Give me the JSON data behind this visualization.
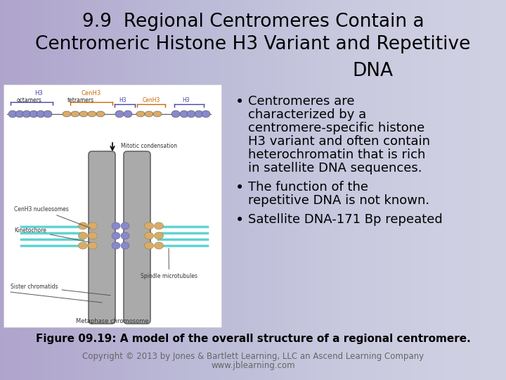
{
  "title_line1": "9.9  Regional Centromeres Contain a",
  "title_line2": "Centromeric Histone H3 Variant and Repetitive",
  "title_line3": "DNA",
  "background_color": "#c8c8de",
  "bullet1_lines": [
    "Centromeres are",
    "characterized by a",
    "centromere-specific histone",
    "H3 variant and often contain",
    "heterochromatin that is rich",
    "in satellite DNA sequences."
  ],
  "bullet2_lines": [
    "The function of the",
    "repetitive DNA is not known."
  ],
  "bullet3": "Satellite DNA-171 Bp repeated",
  "figure_caption": "Figure 09.19: A model of the overall structure of a regional centromere.",
  "copyright_line1": "Copyright © 2013 by Jones & Bartlett Learning, LLC an Ascend Learning Company",
  "copyright_line2": "www.jblearning.com",
  "title_fontsize": 19,
  "bullet_fontsize": 13,
  "caption_fontsize": 11,
  "copyright_fontsize": 8.5,
  "title_color": "#000000",
  "bullet_color": "#000000",
  "caption_color": "#000000",
  "copyright_color": "#666666",
  "h3_color": "#4444aa",
  "cenh3_color": "#cc6600",
  "nucleosome_h3_color": "#8888cc",
  "nucleosome_cenh3_color": "#ddaa66",
  "chromosome_color": "#aaaaaa",
  "kinetochore_color": "#9999cc",
  "spindle_color": "#44cccc"
}
